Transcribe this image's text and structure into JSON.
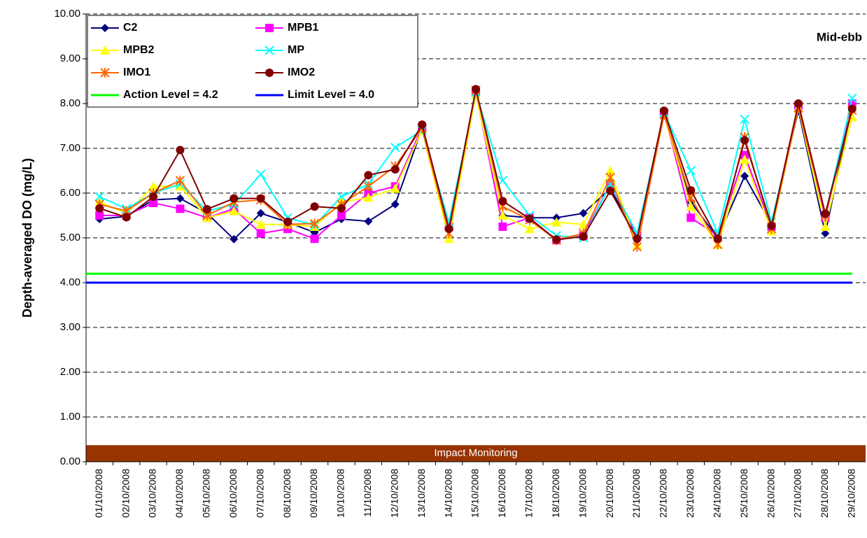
{
  "chart_data": {
    "type": "line",
    "annotation": "Mid-ebb",
    "y_label": "Depth-averaged DO (mg/L)",
    "categories": [
      "01/10/2008",
      "02/10/2008",
      "03/10/2008",
      "04/10/2008",
      "05/10/2008",
      "06/10/2008",
      "07/10/2008",
      "08/10/2008",
      "09/10/2008",
      "10/10/2008",
      "11/10/2008",
      "12/10/2008",
      "13/10/2008",
      "14/10/2008",
      "15/10/2008",
      "16/10/2008",
      "17/10/2008",
      "18/10/2008",
      "19/10/2008",
      "20/10/2008",
      "21/10/2008",
      "22/10/2008",
      "23/10/2008",
      "24/10/2008",
      "25/10/2008",
      "26/10/2008",
      "27/10/2008",
      "28/10/2008",
      "29/10/2008"
    ],
    "series": [
      {
        "name": "C2",
        "color": "#000080",
        "marker": "diamond",
        "values": [
          5.42,
          5.48,
          5.85,
          5.88,
          5.55,
          4.97,
          5.55,
          5.35,
          5.12,
          5.42,
          5.37,
          5.75,
          7.45,
          5.25,
          8.2,
          5.5,
          5.45,
          5.45,
          5.55,
          6.1,
          5.05,
          7.75,
          5.8,
          5.0,
          6.38,
          5.3,
          7.85,
          5.1,
          7.95
        ]
      },
      {
        "name": "MPB1",
        "color": "#ff00ff",
        "marker": "square",
        "values": [
          5.5,
          5.5,
          5.78,
          5.65,
          5.45,
          5.65,
          5.1,
          5.2,
          4.98,
          5.5,
          6.0,
          6.15,
          7.45,
          5.25,
          8.25,
          5.25,
          5.45,
          4.95,
          5.05,
          6.2,
          5.05,
          7.8,
          5.45,
          5.05,
          6.85,
          5.25,
          7.95,
          5.45,
          8.0
        ]
      },
      {
        "name": "MPB2",
        "color": "#ffff00",
        "marker": "triangle",
        "values": [
          5.8,
          5.55,
          6.15,
          6.15,
          5.45,
          5.6,
          5.3,
          5.3,
          5.25,
          5.8,
          5.9,
          6.1,
          7.4,
          4.98,
          8.2,
          5.5,
          5.2,
          5.35,
          5.3,
          6.5,
          4.85,
          7.75,
          5.7,
          4.85,
          6.75,
          5.15,
          7.9,
          5.25,
          7.7
        ]
      },
      {
        "name": "MP",
        "color": "#00ffff",
        "marker": "x",
        "values": [
          5.92,
          5.65,
          6.0,
          6.2,
          5.6,
          5.75,
          6.42,
          5.45,
          5.28,
          5.92,
          6.2,
          7.02,
          7.4,
          5.35,
          8.25,
          6.28,
          5.5,
          5.05,
          5.0,
          6.2,
          5.1,
          7.8,
          6.5,
          5.1,
          7.65,
          5.35,
          7.9,
          5.5,
          8.12
        ]
      },
      {
        "name": "IMO1",
        "color": "#ff6600",
        "marker": "asterisk",
        "values": [
          5.75,
          5.6,
          6.0,
          6.28,
          5.5,
          5.8,
          5.85,
          5.3,
          5.32,
          5.75,
          6.15,
          6.6,
          7.45,
          5.1,
          8.3,
          5.7,
          5.4,
          4.95,
          5.1,
          6.35,
          4.8,
          7.75,
          5.9,
          4.85,
          7.25,
          5.2,
          7.9,
          5.5,
          7.85
        ]
      },
      {
        "name": "IMO2",
        "color": "#800000",
        "marker": "circle",
        "values": [
          5.66,
          5.46,
          5.92,
          6.96,
          5.64,
          5.88,
          5.88,
          5.36,
          5.7,
          5.66,
          6.4,
          6.53,
          7.53,
          5.2,
          8.32,
          5.82,
          5.43,
          4.96,
          5.03,
          6.05,
          4.98,
          7.84,
          6.06,
          4.98,
          7.18,
          5.27,
          8.0,
          5.54,
          7.88
        ]
      }
    ],
    "levels": [
      {
        "name": "Action Level = 4.2",
        "value": 4.2,
        "color": "#00ff00"
      },
      {
        "name": "Limit Level = 4.0",
        "value": 4.0,
        "color": "#0000ff"
      }
    ],
    "band": {
      "label": "Impact Monitoring",
      "from": 0,
      "to": 0.37,
      "color": "#993300"
    },
    "ylim": [
      0,
      10
    ],
    "yticks": [
      {
        "value": 0,
        "label": "0.00"
      },
      {
        "value": 1,
        "label": "1.00"
      },
      {
        "value": 2,
        "label": "2.00"
      },
      {
        "value": 3,
        "label": "3.00"
      },
      {
        "value": 4,
        "label": "4.00"
      },
      {
        "value": 5,
        "label": "5.00"
      },
      {
        "value": 6,
        "label": "6.00"
      },
      {
        "value": 7,
        "label": "7.00"
      },
      {
        "value": 8,
        "label": "8.00"
      },
      {
        "value": 9,
        "label": "9.00"
      },
      {
        "value": 10,
        "label": "10.00"
      }
    ],
    "grid": true
  }
}
